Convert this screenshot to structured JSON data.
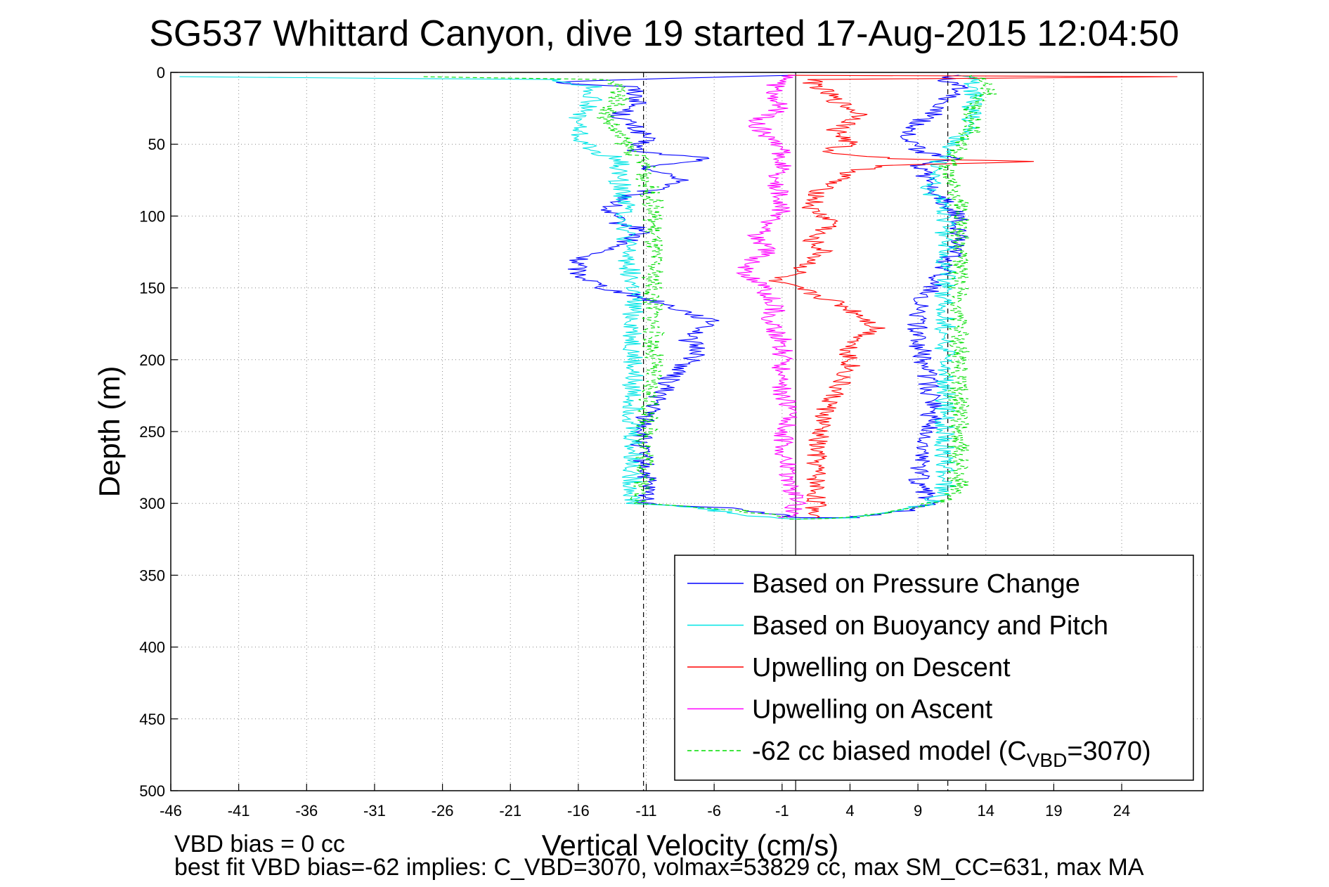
{
  "chart_data": {
    "type": "line",
    "title": "SG537 Whittard Canyon, dive 19 started 17-Aug-2015 12:04:50",
    "xlabel": "Vertical Velocity (cm/s)",
    "ylabel": "Depth (m)",
    "xlim": [
      -46,
      30
    ],
    "ylim": [
      0,
      500
    ],
    "y_reversed": true,
    "x_ticks": [
      -46,
      -41,
      -36,
      -31,
      -26,
      -21,
      -16,
      -11,
      -6,
      -1,
      4,
      9,
      14,
      19,
      24
    ],
    "y_ticks": [
      0,
      50,
      100,
      150,
      200,
      250,
      300,
      350,
      400,
      450,
      500
    ],
    "grid": true,
    "legend_position": "lower-right",
    "reference_lines": [
      {
        "x": -11.2,
        "style": "dashed",
        "color": "#000000"
      },
      {
        "x": 0,
        "style": "solid",
        "color": "#000000"
      },
      {
        "x": 11.2,
        "style": "dashed",
        "color": "#000000"
      }
    ],
    "series": [
      {
        "name": "Based on Pressure Change",
        "color": "#0000ff",
        "dash": "",
        "points": [
          [
            0,
            2
          ],
          [
            -12,
            5
          ],
          [
            -18,
            7
          ],
          [
            -12,
            10
          ],
          [
            -11.5,
            20
          ],
          [
            -13,
            30
          ],
          [
            -11,
            45
          ],
          [
            -12,
            55
          ],
          [
            -6,
            60
          ],
          [
            -11,
            65
          ],
          [
            -10,
            70
          ],
          [
            -8,
            75
          ],
          [
            -12,
            85
          ],
          [
            -14,
            95
          ],
          [
            -13,
            105
          ],
          [
            -11,
            110
          ],
          [
            -13,
            120
          ],
          [
            -16,
            130
          ],
          [
            -16,
            140
          ],
          [
            -14,
            150
          ],
          [
            -10,
            160
          ],
          [
            -7,
            170
          ],
          [
            -6,
            175
          ],
          [
            -8,
            185
          ],
          [
            -7,
            195
          ],
          [
            -9,
            210
          ],
          [
            -10,
            225
          ],
          [
            -11,
            240
          ],
          [
            -11.5,
            260
          ],
          [
            -11,
            280
          ],
          [
            -11,
            300
          ],
          [
            -4,
            304
          ],
          [
            0,
            310
          ],
          [
            4,
            310
          ],
          [
            8,
            305
          ],
          [
            10,
            300
          ],
          [
            9,
            285
          ],
          [
            9.5,
            265
          ],
          [
            10,
            245
          ],
          [
            10,
            225
          ],
          [
            9.5,
            205
          ],
          [
            9,
            185
          ],
          [
            9,
            165
          ],
          [
            10,
            150
          ],
          [
            11,
            135
          ],
          [
            12,
            115
          ],
          [
            12,
            100
          ],
          [
            11,
            90
          ],
          [
            10,
            80
          ],
          [
            9,
            65
          ],
          [
            12,
            60
          ],
          [
            9,
            55
          ],
          [
            8,
            40
          ],
          [
            10,
            30
          ],
          [
            11,
            20
          ],
          [
            12,
            10
          ],
          [
            11,
            5
          ],
          [
            12,
            2
          ]
        ]
      },
      {
        "name": "Based on Buoyancy and Pitch",
        "color": "#00e5e5",
        "dash": "",
        "points": [
          [
            -45,
            3
          ],
          [
            -18,
            5
          ],
          [
            -15,
            10
          ],
          [
            -15,
            20
          ],
          [
            -16,
            30
          ],
          [
            -16,
            45
          ],
          [
            -15,
            55
          ],
          [
            -13,
            60
          ],
          [
            -13,
            75
          ],
          [
            -12.5,
            90
          ],
          [
            -12.5,
            120
          ],
          [
            -12,
            150
          ],
          [
            -12,
            200
          ],
          [
            -12,
            250
          ],
          [
            -12,
            300
          ],
          [
            -7,
            303
          ],
          [
            -4,
            308
          ],
          [
            0,
            311
          ],
          [
            4,
            310
          ],
          [
            7,
            306
          ],
          [
            10,
            300
          ],
          [
            11,
            290
          ],
          [
            11,
            250
          ],
          [
            11,
            200
          ],
          [
            11,
            150
          ],
          [
            11,
            110
          ],
          [
            11,
            95
          ],
          [
            10,
            85
          ],
          [
            10,
            70
          ],
          [
            11,
            55
          ],
          [
            12,
            45
          ],
          [
            13,
            35
          ],
          [
            13,
            20
          ],
          [
            13,
            10
          ],
          [
            13,
            5
          ],
          [
            12,
            2
          ]
        ]
      },
      {
        "name": "Upwelling on Descent",
        "color": "#ff0000",
        "dash": "",
        "points": [
          [
            0,
            2
          ],
          [
            28,
            3
          ],
          [
            1,
            5
          ],
          [
            3,
            20
          ],
          [
            5,
            30
          ],
          [
            3,
            40
          ],
          [
            4,
            50
          ],
          [
            2,
            55
          ],
          [
            7,
            60
          ],
          [
            18,
            62
          ],
          [
            6,
            65
          ],
          [
            4,
            70
          ],
          [
            2,
            80
          ],
          [
            1,
            95
          ],
          [
            3,
            105
          ],
          [
            1,
            115
          ],
          [
            2,
            125
          ],
          [
            0,
            140
          ],
          [
            -2,
            145
          ],
          [
            0,
            150
          ],
          [
            3,
            160
          ],
          [
            5,
            170
          ],
          [
            6,
            178
          ],
          [
            4,
            190
          ],
          [
            4,
            205
          ],
          [
            3,
            220
          ],
          [
            2,
            240
          ],
          [
            1.5,
            260
          ],
          [
            1.5,
            280
          ],
          [
            1.5,
            300
          ],
          [
            1.5,
            310
          ]
        ]
      },
      {
        "name": "Upwelling on Ascent",
        "color": "#ff00ff",
        "dash": "",
        "points": [
          [
            -0.5,
            310
          ],
          [
            0,
            300
          ],
          [
            -0.5,
            280
          ],
          [
            -1,
            260
          ],
          [
            -0.5,
            240
          ],
          [
            -1,
            220
          ],
          [
            -1,
            200
          ],
          [
            -1,
            185
          ],
          [
            -2,
            175
          ],
          [
            -1.5,
            165
          ],
          [
            -2,
            155
          ],
          [
            -3,
            145
          ],
          [
            -4,
            135
          ],
          [
            -2,
            125
          ],
          [
            -3,
            115
          ],
          [
            -2,
            105
          ],
          [
            -1,
            95
          ],
          [
            -1,
            85
          ],
          [
            -2,
            75
          ],
          [
            -1,
            65
          ],
          [
            -1,
            55
          ],
          [
            -2,
            45
          ],
          [
            -3,
            35
          ],
          [
            -1,
            25
          ],
          [
            -2,
            15
          ],
          [
            -1,
            5
          ],
          [
            0,
            2
          ]
        ]
      },
      {
        "name": "-62 cc biased model (C_VBD=3070)",
        "color": "#00dd00",
        "dash": "6,4",
        "points": [
          [
            -28,
            3
          ],
          [
            -14,
            5
          ],
          [
            -13,
            10
          ],
          [
            -13,
            20
          ],
          [
            -14,
            30
          ],
          [
            -13,
            45
          ],
          [
            -12,
            55
          ],
          [
            -11,
            65
          ],
          [
            -11,
            75
          ],
          [
            -10.5,
            90
          ],
          [
            -10.5,
            110
          ],
          [
            -10.5,
            130
          ],
          [
            -10.5,
            150
          ],
          [
            -10.5,
            175
          ],
          [
            -10.5,
            200
          ],
          [
            -11,
            250
          ],
          [
            -11,
            280
          ],
          [
            -11.5,
            300
          ],
          [
            -4,
            305
          ],
          [
            0,
            311
          ],
          [
            4,
            310
          ],
          [
            8,
            305
          ],
          [
            11,
            298
          ],
          [
            12,
            288
          ],
          [
            12,
            270
          ],
          [
            12,
            240
          ],
          [
            12,
            200
          ],
          [
            12,
            160
          ],
          [
            12,
            130
          ],
          [
            12,
            105
          ],
          [
            12,
            90
          ],
          [
            11,
            70
          ],
          [
            12,
            55
          ],
          [
            13,
            40
          ],
          [
            13,
            25
          ],
          [
            14,
            15
          ],
          [
            14,
            5
          ],
          [
            13,
            2
          ]
        ]
      }
    ],
    "legend": {
      "entries": [
        "Based on Pressure Change",
        "Based on Buoyancy and Pitch",
        "Upwelling on Descent",
        "Upwelling on Ascent"
      ],
      "model_prefix": "-62 cc biased model (C",
      "model_sub": "VBD",
      "model_suffix": "=3070)"
    },
    "footer": {
      "line1": "VBD bias = 0 cc",
      "line2": "best fit VBD bias=-62 implies: C_VBD=3070, volmax=53829 cc, max SM_CC=631, max MA"
    }
  }
}
